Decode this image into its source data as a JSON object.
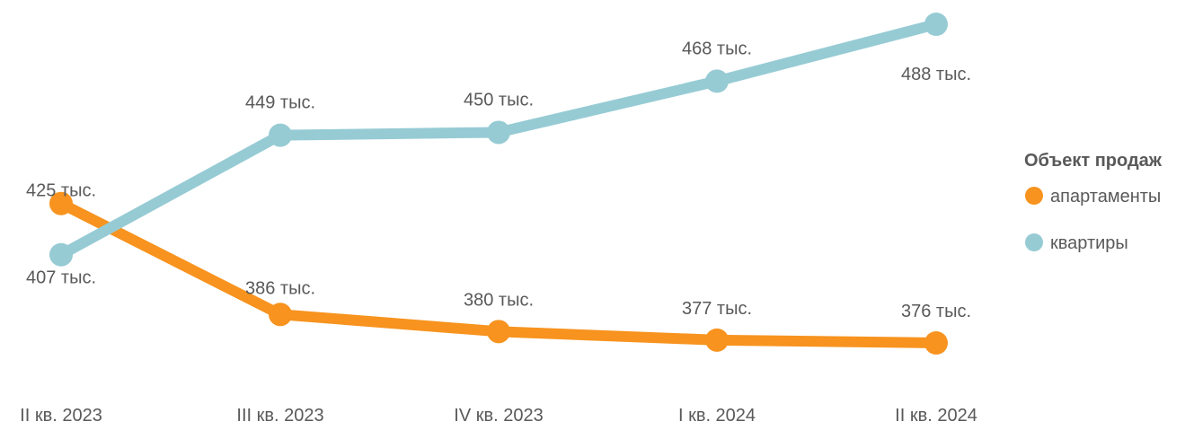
{
  "chart_data": {
    "type": "line",
    "categories": [
      "II кв. 2023",
      "III кв. 2023",
      "IV кв. 2023",
      "I кв. 2024",
      "II кв. 2024"
    ],
    "series": [
      {
        "name": "апартаменты",
        "color": "#F7931E",
        "values": [
          425,
          386,
          380,
          377,
          376
        ],
        "labels": [
          "425 тыс.",
          "386 тыс.",
          "380 тыс.",
          "377 тыс.",
          "376 тыс."
        ]
      },
      {
        "name": "квартиры",
        "color": "#96CBD4",
        "values": [
          407,
          449,
          450,
          468,
          488
        ],
        "labels": [
          "407 тыс.",
          "449 тыс.",
          "450 тыс.",
          "468 тыс.",
          "488 тыс."
        ]
      }
    ],
    "legend": {
      "title": "Объект продаж",
      "position": "right"
    },
    "grid": false
  }
}
